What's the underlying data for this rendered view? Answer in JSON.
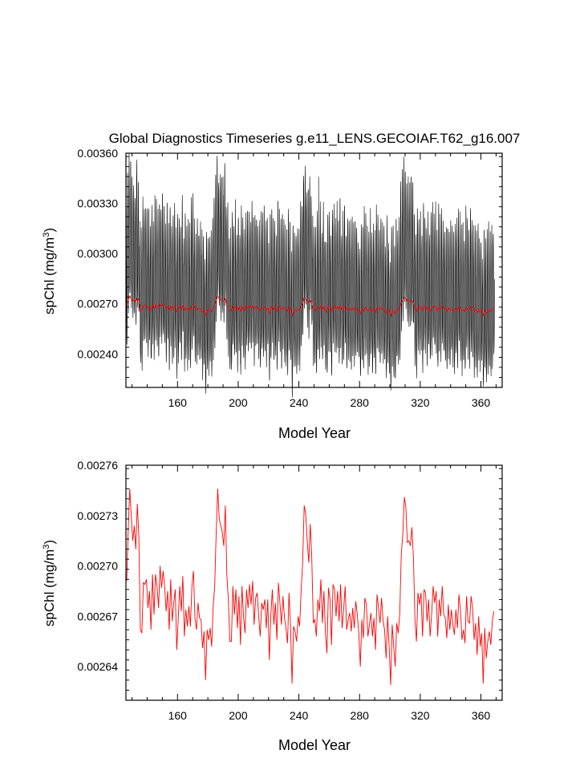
{
  "colors": {
    "monthly": "#000000",
    "annual": "#ff0000",
    "background": "#ffffff"
  },
  "chart_data": [
    {
      "type": "line",
      "title": "Global Diagnostics Timeseries g.e11_LENS.GECOIAF.T62_g16.007",
      "xlabel": "Model Year",
      "ylabel": "spChl (mg/m³)",
      "xlim": [
        126,
        374
      ],
      "ylim": [
        0.0022,
        0.0036
      ],
      "x_ticks": [
        160,
        200,
        240,
        280,
        320,
        360
      ],
      "y_ticks": [
        "0.00240",
        "0.00270",
        "0.00300",
        "0.00330",
        "0.00360"
      ],
      "grid": false,
      "series": [
        {
          "color": "#000000",
          "frequency": "monthly",
          "x_start": 126,
          "x_end": 374,
          "seasonal_min_approx": 0.00236,
          "seasonal_max_approx": 0.00322,
          "peaks": [
            [
              130,
              0.00346
            ],
            [
              190,
              0.00346
            ],
            [
              253,
              0.00346
            ],
            [
              314,
              0.00346
            ]
          ]
        },
        {
          "color": "#ff0000",
          "frequency": "annual",
          "ref": "annual_values"
        }
      ]
    },
    {
      "type": "line",
      "title": "",
      "xlabel": "Model Year",
      "ylabel": "spChl (mg/m³)",
      "xlim": [
        126,
        374
      ],
      "ylim": [
        0.00262,
        0.00276
      ],
      "x_ticks": [
        160,
        200,
        240,
        280,
        320,
        360
      ],
      "y_ticks": [
        "0.00264",
        "0.00267",
        "0.00270",
        "0.00273",
        "0.00276"
      ],
      "grid": false,
      "series": [
        {
          "color": "#ff0000",
          "frequency": "annual",
          "ref": "annual_values"
        }
      ]
    }
  ],
  "annual_values": {
    "x_start": 126,
    "values": [
      0.002691,
      0.002721,
      0.002746,
      0.00273,
      0.002715,
      0.002724,
      0.00271,
      0.002737,
      0.002718,
      0.002662,
      0.00266,
      0.00269,
      0.002689,
      0.002692,
      0.002675,
      0.002685,
      0.002662,
      0.002695,
      0.002671,
      0.002695,
      0.002688,
      0.002675,
      0.0027,
      0.002687,
      0.002697,
      0.002688,
      0.002673,
      0.002685,
      0.002662,
      0.002692,
      0.002667,
      0.002678,
      0.002686,
      0.00265,
      0.002669,
      0.002688,
      0.002673,
      0.002694,
      0.002658,
      0.002674,
      0.002664,
      0.002676,
      0.002664,
      0.002688,
      0.002697,
      0.002669,
      0.002662,
      0.002678,
      0.002669,
      0.002668,
      0.002651,
      0.002661,
      0.002632,
      0.002662,
      0.002656,
      0.002663,
      0.002652,
      0.002676,
      0.002688,
      0.00272,
      0.002746,
      0.002728,
      0.002724,
      0.00272,
      0.002712,
      0.002736,
      0.002695,
      0.00268,
      0.002655,
      0.002655,
      0.002688,
      0.002671,
      0.002686,
      0.002663,
      0.002682,
      0.002653,
      0.002688,
      0.00267,
      0.00266,
      0.002686,
      0.002675,
      0.002689,
      0.002677,
      0.002691,
      0.002665,
      0.002681,
      0.002684,
      0.00267,
      0.002658,
      0.002678,
      0.002674,
      0.00268,
      0.002663,
      0.00268,
      0.002644,
      0.00267,
      0.002686,
      0.002665,
      0.002678,
      0.002656,
      0.00269,
      0.002678,
      0.002665,
      0.002682,
      0.002669,
      0.002663,
      0.002654,
      0.002684,
      0.002664,
      0.00263,
      0.002664,
      0.002661,
      0.002655,
      0.00267,
      0.002664,
      0.002686,
      0.002702,
      0.002736,
      0.002731,
      0.002715,
      0.002702,
      0.002725,
      0.002705,
      0.002666,
      0.002668,
      0.002658,
      0.00268,
      0.002673,
      0.002692,
      0.002666,
      0.002685,
      0.00266,
      0.002648,
      0.002687,
      0.00268,
      0.002653,
      0.002689,
      0.002686,
      0.00267,
      0.002685,
      0.002667,
      0.002689,
      0.002663,
      0.002674,
      0.002688,
      0.002662,
      0.002668,
      0.002672,
      0.002661,
      0.002675,
      0.002663,
      0.002679,
      0.002671,
      0.00266,
      0.00264,
      0.002668,
      0.002657,
      0.002681,
      0.002677,
      0.002658,
      0.002665,
      0.002672,
      0.002658,
      0.002669,
      0.00265,
      0.002683,
      0.002675,
      0.002666,
      0.002681,
      0.002667,
      0.002662,
      0.002645,
      0.00267,
      0.002652,
      0.002629,
      0.002665,
      0.002652,
      0.00264,
      0.002666,
      0.00266,
      0.002672,
      0.002707,
      0.002719,
      0.002741,
      0.002735,
      0.002714,
      0.002715,
      0.002712,
      0.002723,
      0.002705,
      0.002668,
      0.002655,
      0.002684,
      0.002677,
      0.002684,
      0.002658,
      0.002686,
      0.002684,
      0.002667,
      0.00268,
      0.002658,
      0.002671,
      0.002688,
      0.002678,
      0.002685,
      0.002658,
      0.00268,
      0.00267,
      0.002688,
      0.002671,
      0.002669,
      0.002657,
      0.002677,
      0.002662,
      0.002674,
      0.002665,
      0.002659,
      0.002674,
      0.002663,
      0.002683,
      0.002674,
      0.002656,
      0.002662,
      0.002654,
      0.002682,
      0.002667,
      0.002666,
      0.002682,
      0.002675,
      0.002656,
      0.002666,
      0.002647,
      0.00267,
      0.002652,
      0.00266,
      0.00263,
      0.002663,
      0.002645,
      0.002655,
      0.002661,
      0.002653,
      0.002667,
      0.002673
    ]
  }
}
